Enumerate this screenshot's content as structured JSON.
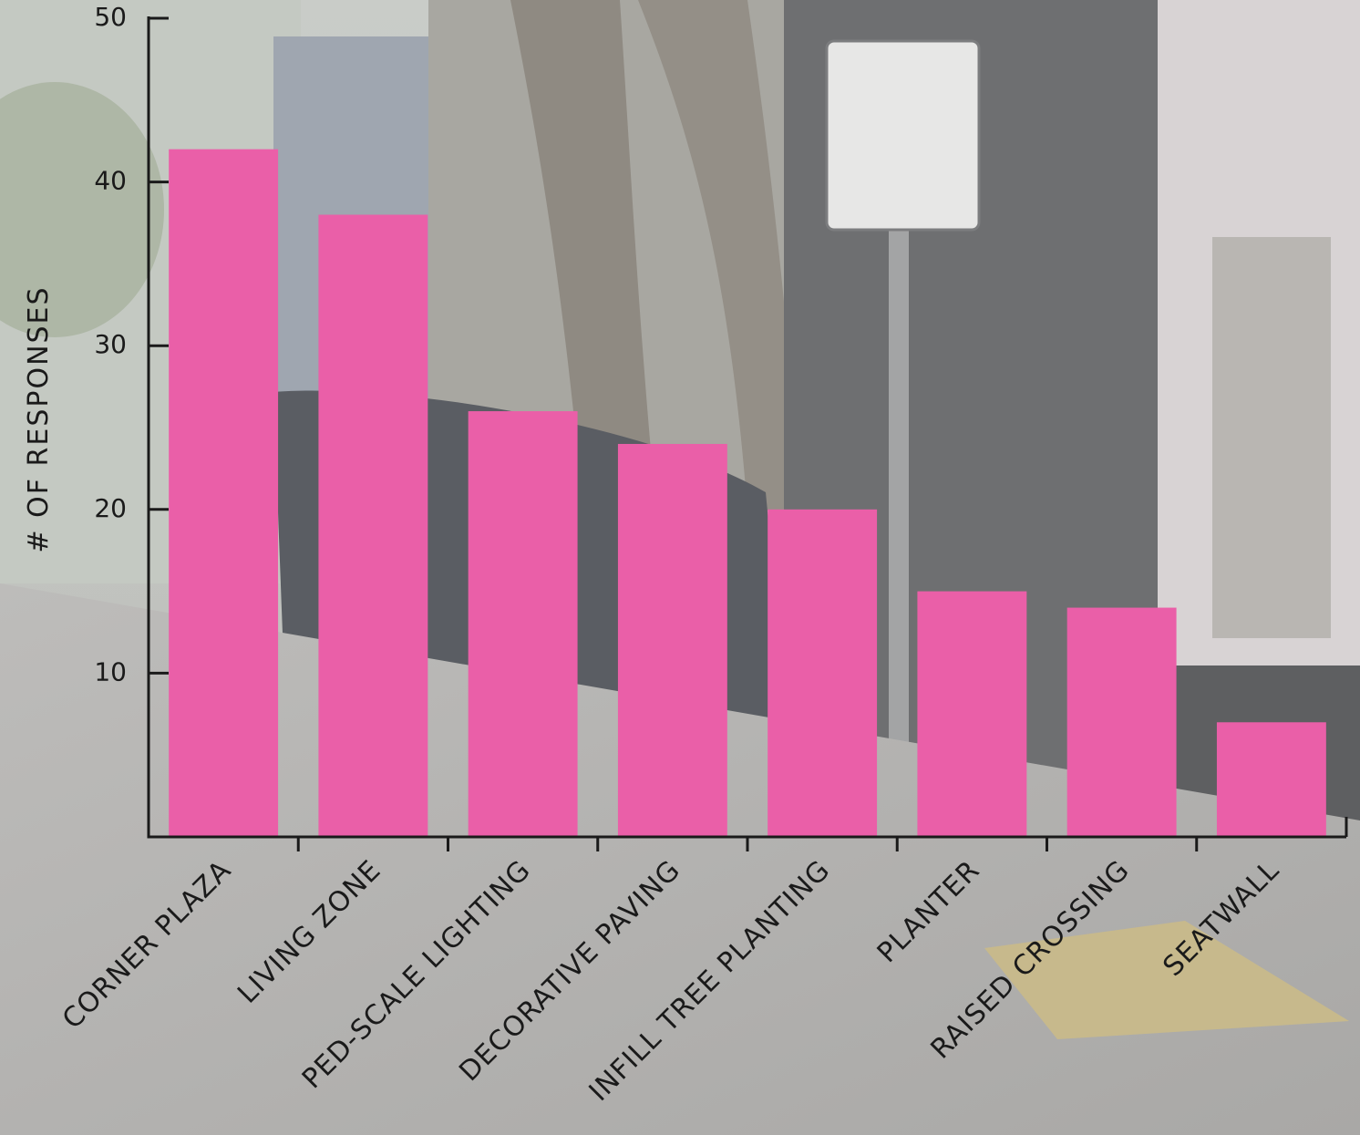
{
  "chart_data": {
    "type": "bar",
    "y_label": "# OF RESPONSES",
    "categories": [
      "CORNER PLAZA",
      "LIVING ZONE",
      "PED-SCALE LIGHTING",
      "DECORATIVE PAVING",
      "INFILL TREE PLANTING",
      "PLANTER",
      "RAISED CROSSING",
      "SEATWALL"
    ],
    "values": [
      42,
      38,
      26,
      24,
      20,
      15,
      14,
      7
    ],
    "color": "#ea5fa8",
    "ylim": [
      0,
      50
    ],
    "yticks": [
      10,
      20,
      30,
      40,
      50
    ],
    "grid": false
  }
}
